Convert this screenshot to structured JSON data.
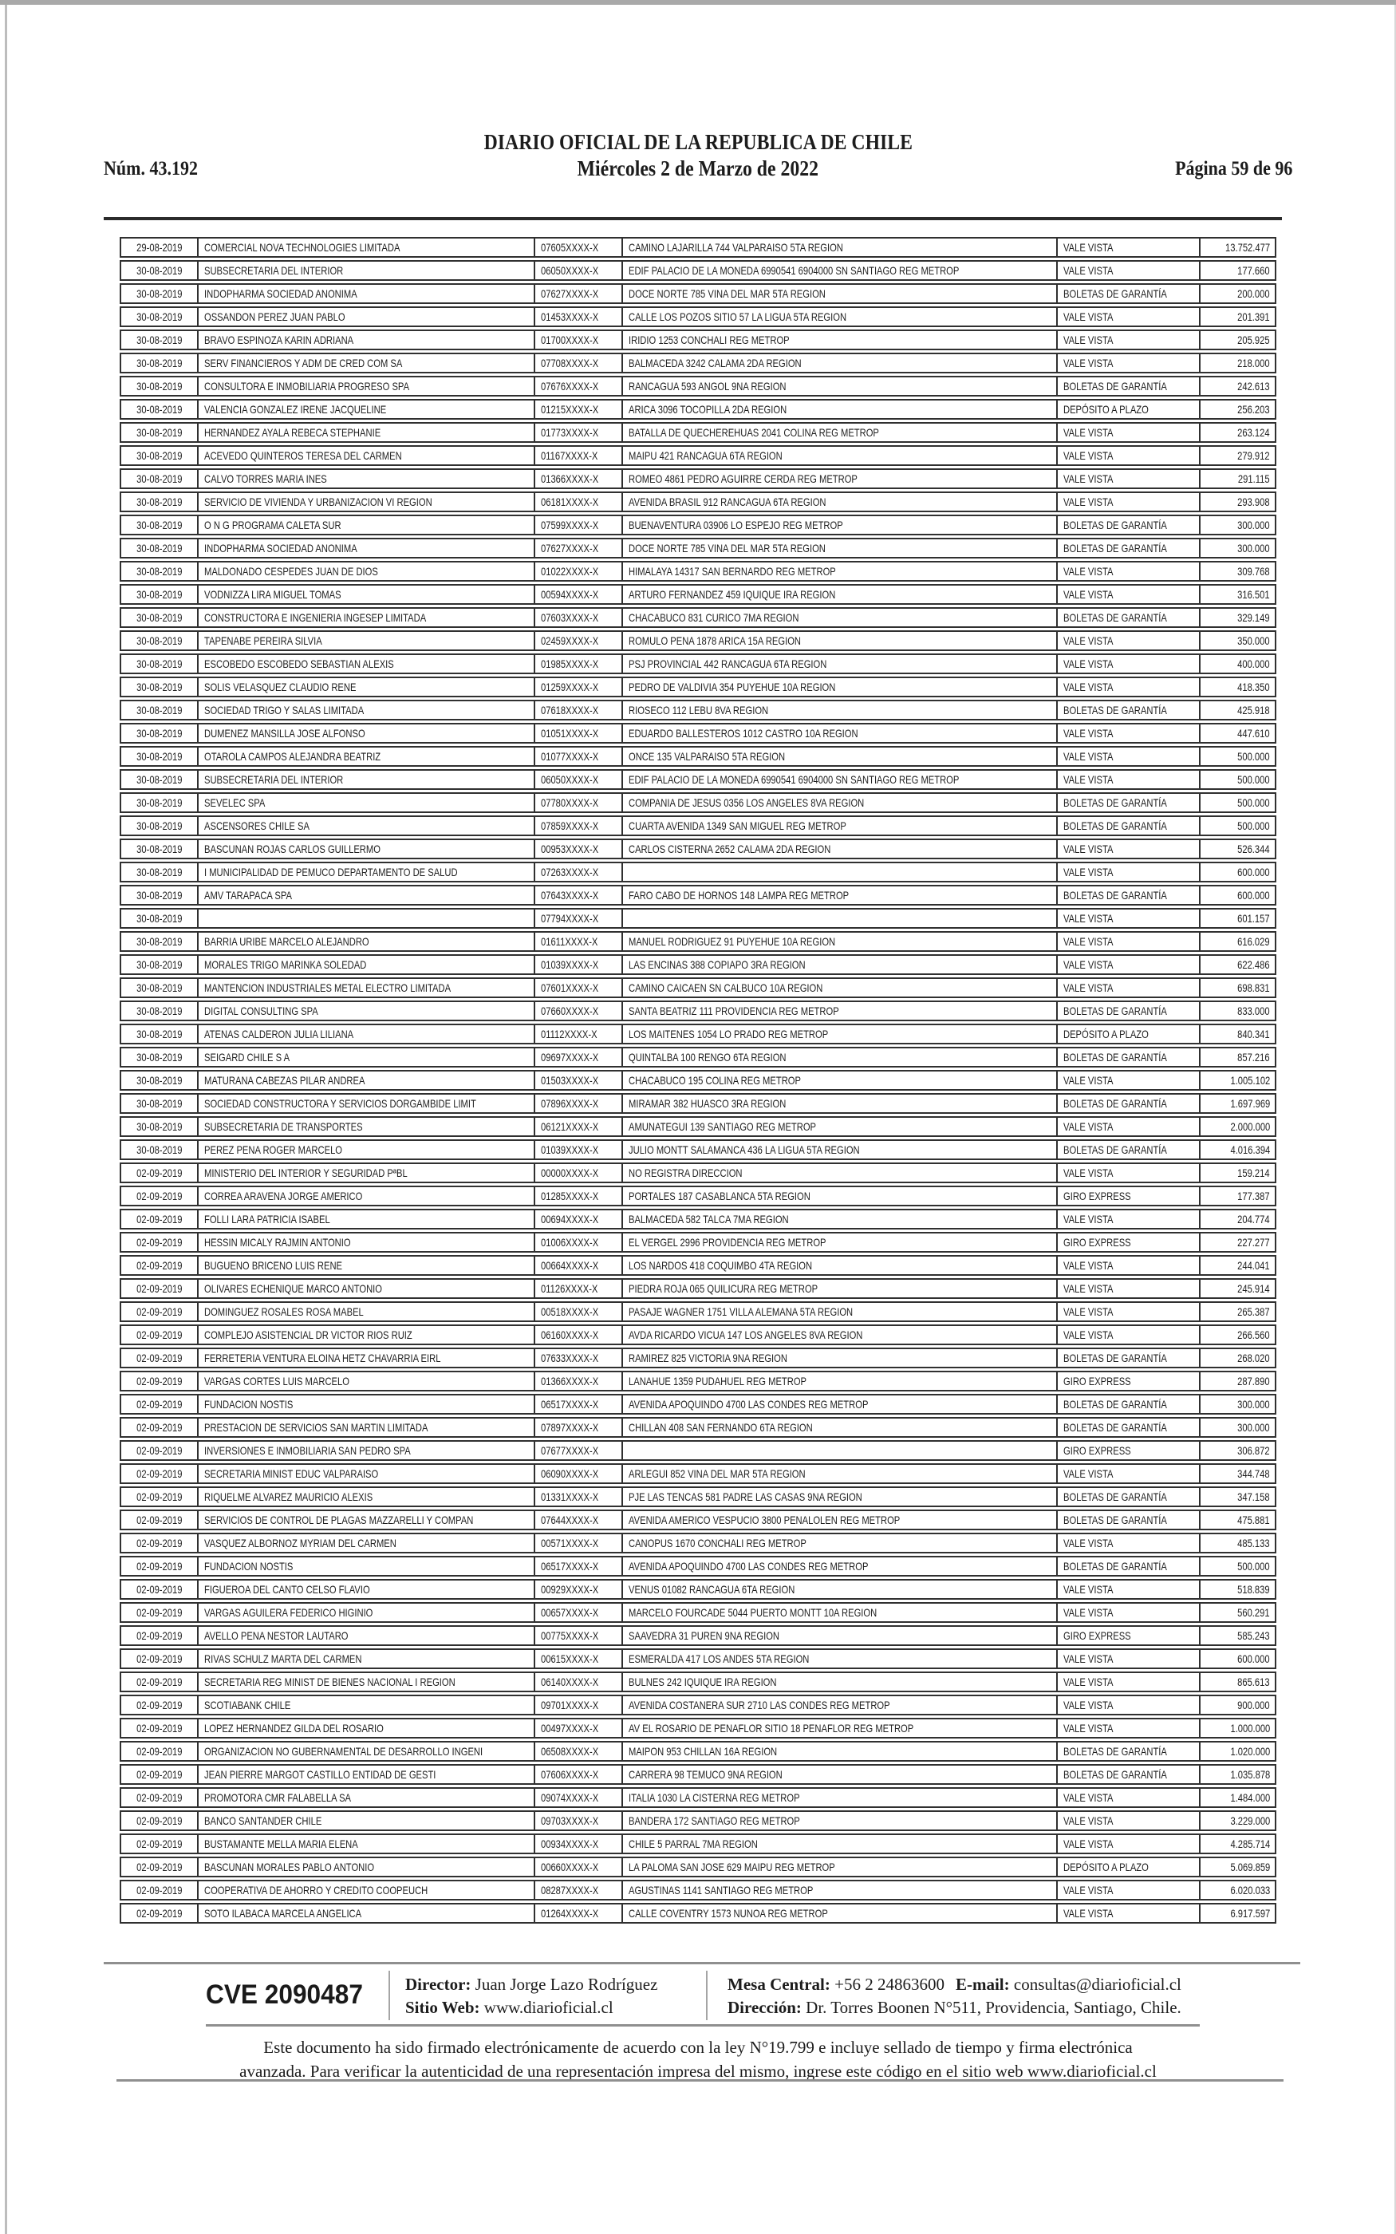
{
  "header": {
    "issue_label": "Núm. 43.192",
    "title": "DIARIO OFICIAL DE LA REPUBLICA DE CHILE",
    "date_line": "Miércoles 2 de Marzo de 2022",
    "page_label": "Página 59 de 96"
  },
  "table": {
    "rows": [
      [
        "29-08-2019",
        "COMERCIAL NOVA TECHNOLOGIES LIMITADA",
        "07605XXXX-X",
        "CAMINO LAJARILLA 744 VALPARAISO 5TA REGION",
        "VALE VISTA",
        "13.752.477"
      ],
      [
        "30-08-2019",
        "SUBSECRETARIA DEL INTERIOR",
        "06050XXXX-X",
        "EDIF PALACIO DE LA MONEDA 6990541 6904000 SN SANTIAGO REG METROP",
        "VALE VISTA",
        "177.660"
      ],
      [
        "30-08-2019",
        "INDOPHARMA SOCIEDAD ANONIMA",
        "07627XXXX-X",
        "DOCE NORTE 785 VINA DEL MAR 5TA REGION",
        "BOLETAS DE GARANTÍA",
        "200.000"
      ],
      [
        "30-08-2019",
        "OSSANDON PEREZ JUAN PABLO",
        "01453XXXX-X",
        "CALLE LOS POZOS SITIO 57 LA LIGUA 5TA REGION",
        "VALE VISTA",
        "201.391"
      ],
      [
        "30-08-2019",
        "BRAVO ESPINOZA KARIN ADRIANA",
        "01700XXXX-X",
        "IRIDIO 1253 CONCHALI REG METROP",
        "VALE VISTA",
        "205.925"
      ],
      [
        "30-08-2019",
        "SERV FINANCIEROS Y ADM DE CRED COM SA",
        "07708XXXX-X",
        "BALMACEDA 3242 CALAMA 2DA REGION",
        "VALE VISTA",
        "218.000"
      ],
      [
        "30-08-2019",
        "CONSULTORA E INMOBILIARIA PROGRESO SPA",
        "07676XXXX-X",
        "RANCAGUA 593 ANGOL 9NA REGION",
        "BOLETAS DE GARANTÍA",
        "242.613"
      ],
      [
        "30-08-2019",
        "VALENCIA GONZALEZ IRENE JACQUELINE",
        "01215XXXX-X",
        "ARICA 3096 TOCOPILLA 2DA REGION",
        "DEPÓSITO A PLAZO",
        "256.203"
      ],
      [
        "30-08-2019",
        "HERNANDEZ AYALA REBECA STEPHANIE",
        "01773XXXX-X",
        "BATALLA DE QUECHEREHUAS 2041 COLINA REG METROP",
        "VALE VISTA",
        "263.124"
      ],
      [
        "30-08-2019",
        "ACEVEDO QUINTEROS TERESA DEL CARMEN",
        "01167XXXX-X",
        "MAIPU 421 RANCAGUA 6TA REGION",
        "VALE VISTA",
        "279.912"
      ],
      [
        "30-08-2019",
        "CALVO TORRES MARIA INES",
        "01366XXXX-X",
        "ROMEO 4861 PEDRO AGUIRRE CERDA REG METROP",
        "VALE VISTA",
        "291.115"
      ],
      [
        "30-08-2019",
        "SERVICIO DE VIVIENDA Y URBANIZACION VI REGION",
        "06181XXXX-X",
        "AVENIDA BRASIL 912 RANCAGUA 6TA REGION",
        "VALE VISTA",
        "293.908"
      ],
      [
        "30-08-2019",
        "O N G PROGRAMA CALETA SUR",
        "07599XXXX-X",
        "BUENAVENTURA 03906 LO ESPEJO REG METROP",
        "BOLETAS DE GARANTÍA",
        "300.000"
      ],
      [
        "30-08-2019",
        "INDOPHARMA SOCIEDAD ANONIMA",
        "07627XXXX-X",
        "DOCE NORTE 785 VINA DEL MAR 5TA REGION",
        "BOLETAS DE GARANTÍA",
        "300.000"
      ],
      [
        "30-08-2019",
        "MALDONADO CESPEDES JUAN DE DIOS",
        "01022XXXX-X",
        "HIMALAYA 14317 SAN BERNARDO REG METROP",
        "VALE VISTA",
        "309.768"
      ],
      [
        "30-08-2019",
        "VODNIZZA LIRA MIGUEL TOMAS",
        "00594XXXX-X",
        "ARTURO FERNANDEZ 459 IQUIQUE IRA REGION",
        "VALE VISTA",
        "316.501"
      ],
      [
        "30-08-2019",
        "CONSTRUCTORA E INGENIERIA INGESEP LIMITADA",
        "07603XXXX-X",
        "CHACABUCO 831 CURICO 7MA REGION",
        "BOLETAS DE GARANTÍA",
        "329.149"
      ],
      [
        "30-08-2019",
        "TAPENABE PEREIRA SILVIA",
        "02459XXXX-X",
        "ROMULO PENA 1878 ARICA 15A REGION",
        "VALE VISTA",
        "350.000"
      ],
      [
        "30-08-2019",
        "ESCOBEDO ESCOBEDO SEBASTIAN ALEXIS",
        "01985XXXX-X",
        "PSJ PROVINCIAL 442 RANCAGUA 6TA REGION",
        "VALE VISTA",
        "400.000"
      ],
      [
        "30-08-2019",
        "SOLIS VELASQUEZ CLAUDIO RENE",
        "01259XXXX-X",
        "PEDRO DE VALDIVIA 354 PUYEHUE 10A REGION",
        "VALE VISTA",
        "418.350"
      ],
      [
        "30-08-2019",
        "SOCIEDAD TRIGO Y SALAS LIMITADA",
        "07618XXXX-X",
        "RIOSECO 112 LEBU 8VA REGION",
        "BOLETAS DE GARANTÍA",
        "425.918"
      ],
      [
        "30-08-2019",
        "DUMENEZ MANSILLA JOSE ALFONSO",
        "01051XXXX-X",
        "EDUARDO BALLESTEROS 1012 CASTRO 10A REGION",
        "VALE VISTA",
        "447.610"
      ],
      [
        "30-08-2019",
        "OTAROLA CAMPOS ALEJANDRA BEATRIZ",
        "01077XXXX-X",
        "ONCE 135 VALPARAISO 5TA REGION",
        "VALE VISTA",
        "500.000"
      ],
      [
        "30-08-2019",
        "SUBSECRETARIA DEL INTERIOR",
        "06050XXXX-X",
        "EDIF PALACIO DE LA MONEDA 6990541 6904000 SN SANTIAGO REG METROP",
        "VALE VISTA",
        "500.000"
      ],
      [
        "30-08-2019",
        "SEVELEC SPA",
        "07780XXXX-X",
        "COMPANIA DE JESUS 0356 LOS ANGELES 8VA REGION",
        "BOLETAS DE GARANTÍA",
        "500.000"
      ],
      [
        "30-08-2019",
        "ASCENSORES CHILE SA",
        "07859XXXX-X",
        "CUARTA AVENIDA 1349 SAN MIGUEL REG METROP",
        "BOLETAS DE GARANTÍA",
        "500.000"
      ],
      [
        "30-08-2019",
        "BASCUNAN ROJAS CARLOS GUILLERMO",
        "00953XXXX-X",
        "CARLOS CISTERNA 2652 CALAMA 2DA REGION",
        "VALE VISTA",
        "526.344"
      ],
      [
        "30-08-2019",
        "I MUNICIPALIDAD DE PEMUCO DEPARTAMENTO DE SALUD",
        "07263XXXX-X",
        "",
        "VALE VISTA",
        "600.000"
      ],
      [
        "30-08-2019",
        "AMV TARAPACA SPA",
        "07643XXXX-X",
        "FARO CABO DE HORNOS 148 LAMPA REG METROP",
        "BOLETAS DE GARANTÍA",
        "600.000"
      ],
      [
        "30-08-2019",
        "",
        "07794XXXX-X",
        "",
        "VALE VISTA",
        "601.157"
      ],
      [
        "30-08-2019",
        "BARRIA URIBE MARCELO ALEJANDRO",
        "01611XXXX-X",
        "MANUEL RODRIGUEZ 91 PUYEHUE 10A REGION",
        "VALE VISTA",
        "616.029"
      ],
      [
        "30-08-2019",
        "MORALES TRIGO MARINKA SOLEDAD",
        "01039XXXX-X",
        "LAS ENCINAS 388 COPIAPO 3RA REGION",
        "VALE VISTA",
        "622.486"
      ],
      [
        "30-08-2019",
        "MANTENCION INDUSTRIALES METAL ELECTRO LIMITADA",
        "07601XXXX-X",
        "CAMINO CAICAEN SN CALBUCO 10A REGION",
        "VALE VISTA",
        "698.831"
      ],
      [
        "30-08-2019",
        "DIGITAL CONSULTING SPA",
        "07660XXXX-X",
        "SANTA BEATRIZ 111 PROVIDENCIA REG METROP",
        "BOLETAS DE GARANTÍA",
        "833.000"
      ],
      [
        "30-08-2019",
        "ATENAS CALDERON JULIA LILIANA",
        "01112XXXX-X",
        "LOS MAITENES 1054 LO PRADO REG METROP",
        "DEPÓSITO A PLAZO",
        "840.341"
      ],
      [
        "30-08-2019",
        "SEIGARD CHILE S A",
        "09697XXXX-X",
        "QUINTALBA 100 RENGO 6TA REGION",
        "BOLETAS DE GARANTÍA",
        "857.216"
      ],
      [
        "30-08-2019",
        "MATURANA CABEZAS PILAR ANDREA",
        "01503XXXX-X",
        "CHACABUCO 195 COLINA REG METROP",
        "VALE VISTA",
        "1.005.102"
      ],
      [
        "30-08-2019",
        "SOCIEDAD CONSTRUCTORA Y SERVICIOS DORGAMBIDE LIMIT",
        "07896XXXX-X",
        "MIRAMAR 382 HUASCO 3RA REGION",
        "BOLETAS DE GARANTÍA",
        "1.697.969"
      ],
      [
        "30-08-2019",
        "SUBSECRETARIA DE TRANSPORTES",
        "06121XXXX-X",
        "AMUNATEGUI 139 SANTIAGO REG METROP",
        "VALE VISTA",
        "2.000.000"
      ],
      [
        "30-08-2019",
        "PEREZ PENA ROGER MARCELO",
        "01039XXXX-X",
        "JULIO MONTT SALAMANCA 436 LA LIGUA 5TA REGION",
        "BOLETAS DE GARANTÍA",
        "4.016.394"
      ],
      [
        "02-09-2019",
        "MINISTERIO DEL INTERIOR Y SEGURIDAD PªBL",
        "00000XXXX-X",
        "NO REGISTRA DIRECCION",
        "VALE VISTA",
        "159.214"
      ],
      [
        "02-09-2019",
        "CORREA ARAVENA JORGE AMERICO",
        "01285XXXX-X",
        "PORTALES 187 CASABLANCA 5TA REGION",
        "GIRO EXPRESS",
        "177.387"
      ],
      [
        "02-09-2019",
        "FOLLI LARA PATRICIA ISABEL",
        "00694XXXX-X",
        "BALMACEDA 582 TALCA 7MA REGION",
        "VALE VISTA",
        "204.774"
      ],
      [
        "02-09-2019",
        "HESSIN MICALY RAJMIN ANTONIO",
        "01006XXXX-X",
        "EL VERGEL 2996 PROVIDENCIA REG METROP",
        "GIRO EXPRESS",
        "227.277"
      ],
      [
        "02-09-2019",
        "BUGUENO BRICENO LUIS RENE",
        "00664XXXX-X",
        "LOS NARDOS 418 COQUIMBO 4TA REGION",
        "VALE VISTA",
        "244.041"
      ],
      [
        "02-09-2019",
        "OLIVARES ECHENIQUE MARCO ANTONIO",
        "01126XXXX-X",
        "PIEDRA ROJA 065 QUILICURA REG METROP",
        "VALE VISTA",
        "245.914"
      ],
      [
        "02-09-2019",
        "DOMINGUEZ ROSALES ROSA MABEL",
        "00518XXXX-X",
        "PASAJE WAGNER 1751 VILLA ALEMANA 5TA REGION",
        "VALE VISTA",
        "265.387"
      ],
      [
        "02-09-2019",
        "COMPLEJO ASISTENCIAL DR VICTOR RIOS RUIZ",
        "06160XXXX-X",
        "AVDA RICARDO VICUA 147 LOS ANGELES 8VA REGION",
        "VALE VISTA",
        "266.560"
      ],
      [
        "02-09-2019",
        "FERRETERIA VENTURA ELOINA HETZ CHAVARRIA EIRL",
        "07633XXXX-X",
        "RAMIREZ 825 VICTORIA 9NA REGION",
        "BOLETAS DE GARANTÍA",
        "268.020"
      ],
      [
        "02-09-2019",
        "VARGAS CORTES LUIS MARCELO",
        "01366XXXX-X",
        "LANAHUE 1359 PUDAHUEL REG METROP",
        "GIRO EXPRESS",
        "287.890"
      ],
      [
        "02-09-2019",
        "FUNDACION NOSTIS",
        "06517XXXX-X",
        "AVENIDA APOQUINDO 4700 LAS CONDES REG METROP",
        "BOLETAS DE GARANTÍA",
        "300.000"
      ],
      [
        "02-09-2019",
        "PRESTACION DE SERVICIOS SAN MARTIN LIMITADA",
        "07897XXXX-X",
        "CHILLAN 408 SAN FERNANDO 6TA REGION",
        "BOLETAS DE GARANTÍA",
        "300.000"
      ],
      [
        "02-09-2019",
        "INVERSIONES E INMOBILIARIA SAN PEDRO SPA",
        "07677XXXX-X",
        "",
        "GIRO EXPRESS",
        "306.872"
      ],
      [
        "02-09-2019",
        "SECRETARIA MINIST EDUC VALPARAISO",
        "06090XXXX-X",
        "ARLEGUI 852 VINA DEL MAR 5TA REGION",
        "VALE VISTA",
        "344.748"
      ],
      [
        "02-09-2019",
        "RIQUELME ALVAREZ MAURICIO ALEXIS",
        "01331XXXX-X",
        "PJE LAS TENCAS 581 PADRE LAS CASAS 9NA REGION",
        "BOLETAS DE GARANTÍA",
        "347.158"
      ],
      [
        "02-09-2019",
        "SERVICIOS DE CONTROL DE PLAGAS MAZZARELLI Y COMPAN",
        "07644XXXX-X",
        "AVENIDA AMERICO VESPUCIO 3800 PENALOLEN REG METROP",
        "BOLETAS DE GARANTÍA",
        "475.881"
      ],
      [
        "02-09-2019",
        "VASQUEZ ALBORNOZ MYRIAM DEL CARMEN",
        "00571XXXX-X",
        "CANOPUS 1670 CONCHALI REG METROP",
        "VALE VISTA",
        "485.133"
      ],
      [
        "02-09-2019",
        "FUNDACION NOSTIS",
        "06517XXXX-X",
        "AVENIDA APOQUINDO 4700 LAS CONDES REG METROP",
        "BOLETAS DE GARANTÍA",
        "500.000"
      ],
      [
        "02-09-2019",
        "FIGUEROA DEL CANTO CELSO FLAVIO",
        "00929XXXX-X",
        "VENUS 01082 RANCAGUA 6TA REGION",
        "VALE VISTA",
        "518.839"
      ],
      [
        "02-09-2019",
        "VARGAS AGUILERA FEDERICO HIGINIO",
        "00657XXXX-X",
        "MARCELO FOURCADE 5044 PUERTO MONTT 10A REGION",
        "VALE VISTA",
        "560.291"
      ],
      [
        "02-09-2019",
        "AVELLO PENA NESTOR LAUTARO",
        "00775XXXX-X",
        "SAAVEDRA 31 PUREN 9NA REGION",
        "GIRO EXPRESS",
        "585.243"
      ],
      [
        "02-09-2019",
        "RIVAS SCHULZ MARTA DEL CARMEN",
        "00615XXXX-X",
        "ESMERALDA 417 LOS ANDES 5TA REGION",
        "VALE VISTA",
        "600.000"
      ],
      [
        "02-09-2019",
        "SECRETARIA REG MINIST DE BIENES NACIONAL I REGION",
        "06140XXXX-X",
        "BULNES 242 IQUIQUE IRA REGION",
        "VALE VISTA",
        "865.613"
      ],
      [
        "02-09-2019",
        "SCOTIABANK CHILE",
        "09701XXXX-X",
        "AVENIDA COSTANERA SUR 2710 LAS CONDES REG METROP",
        "VALE VISTA",
        "900.000"
      ],
      [
        "02-09-2019",
        "LOPEZ HERNANDEZ GILDA DEL ROSARIO",
        "00497XXXX-X",
        "AV EL ROSARIO DE PENAFLOR SITIO 18 PENAFLOR REG METROP",
        "VALE VISTA",
        "1.000.000"
      ],
      [
        "02-09-2019",
        "ORGANIZACION NO GUBERNAMENTAL DE DESARROLLO INGENI",
        "06508XXXX-X",
        "MAIPON 953 CHILLAN 16A REGION",
        "BOLETAS DE GARANTÍA",
        "1.020.000"
      ],
      [
        "02-09-2019",
        "JEAN PIERRE MARGOT CASTILLO ENTIDAD DE GESTI",
        "07606XXXX-X",
        "CARRERA 98 TEMUCO 9NA REGION",
        "BOLETAS DE GARANTÍA",
        "1.035.878"
      ],
      [
        "02-09-2019",
        "PROMOTORA CMR FALABELLA SA",
        "09074XXXX-X",
        "ITALIA 1030 LA CISTERNA REG METROP",
        "VALE VISTA",
        "1.484.000"
      ],
      [
        "02-09-2019",
        "BANCO SANTANDER CHILE",
        "09703XXXX-X",
        "BANDERA 172 SANTIAGO REG METROP",
        "VALE VISTA",
        "3.229.000"
      ],
      [
        "02-09-2019",
        "BUSTAMANTE MELLA MARIA ELENA",
        "00934XXXX-X",
        "CHILE 5 PARRAL 7MA REGION",
        "VALE VISTA",
        "4.285.714"
      ],
      [
        "02-09-2019",
        "BASCUNAN MORALES PABLO ANTONIO",
        "00660XXXX-X",
        "LA PALOMA SAN JOSE 629 MAIPU REG METROP",
        "DEPÓSITO A PLAZO",
        "5.069.859"
      ],
      [
        "02-09-2019",
        "COOPERATIVA DE AHORRO Y CREDITO COOPEUCH",
        "08287XXXX-X",
        "AGUSTINAS 1141 SANTIAGO REG METROP",
        "VALE VISTA",
        "6.020.033"
      ],
      [
        "02-09-2019",
        "SOTO ILABACA MARCELA ANGELICA",
        "01264XXXX-X",
        "CALLE COVENTRY 1573 NUNOA REG METROP",
        "VALE VISTA",
        "6.917.597"
      ]
    ]
  },
  "footer": {
    "cve": "CVE 2090487",
    "director_label": "Director:",
    "director_value": "Juan Jorge Lazo Rodríguez",
    "sitio_label": "Sitio Web:",
    "sitio_value": "www.diarioficial.cl",
    "mesa_label": "Mesa Central:",
    "mesa_value": "+56 2 24863600",
    "email_label": "E-mail:",
    "email_value": "consultas@diarioficial.cl",
    "direccion_label": "Dirección:",
    "direccion_value": "Dr. Torres Boonen N°511, Providencia, Santiago, Chile.",
    "legal_line1": "Este documento ha sido firmado electrónicamente de acuerdo con la ley N°19.799 e incluye sellado de tiempo y firma electrónica",
    "legal_line2": "avanzada. Para verificar la autenticidad de una representación impresa del mismo, ingrese este código en el sitio web www.diarioficial.cl",
    "flag_blue": "#1b5fa8",
    "flag_red": "#ee3d4a"
  }
}
